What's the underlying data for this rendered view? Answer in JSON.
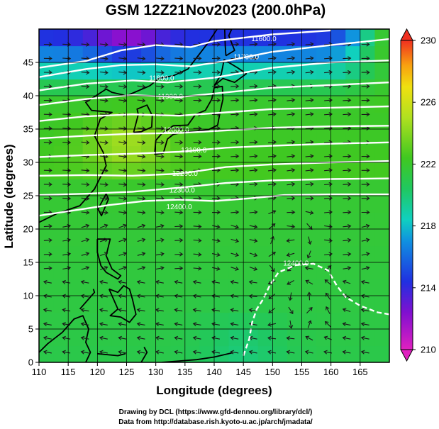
{
  "chart_data": {
    "type": "heatmap",
    "title": "GSM 12Z21Nov2023 (200.0hPa)",
    "xlabel": "Longitude (degrees)",
    "ylabel": "Latitude  (degrees)",
    "xlim": [
      110,
      170
    ],
    "ylim": [
      0,
      50
    ],
    "x_ticks": [
      110,
      115,
      120,
      125,
      130,
      135,
      140,
      145,
      150,
      155,
      160,
      165
    ],
    "y_ticks": [
      0,
      5,
      10,
      15,
      20,
      25,
      30,
      35,
      40,
      45
    ],
    "grid": true,
    "colorbar": {
      "min": 210,
      "max": 230,
      "ticks": [
        210,
        214,
        218,
        222,
        226,
        230
      ],
      "colors": [
        "#e020c0",
        "#6a10d0",
        "#2040e0",
        "#10b0e0",
        "#10e0a0",
        "#30c820",
        "#a8e020",
        "#f0e010",
        "#f8a010",
        "#f03020"
      ]
    },
    "contours": [
      {
        "label": "11600.0",
        "lon": 148.5,
        "lat": 48.2
      },
      {
        "label": "11700.0",
        "lon": 145.5,
        "lat": 45.5
      },
      {
        "label": "11800.0",
        "lon": 131.0,
        "lat": 42.3
      },
      {
        "label": "11900.0",
        "lon": 132.5,
        "lat": 39.5
      },
      {
        "label": "12000.0",
        "lon": 133.5,
        "lat": 34.5
      },
      {
        "label": "12100.0",
        "lon": 136.5,
        "lat": 31.5
      },
      {
        "label": "12200.0",
        "lon": 135.0,
        "lat": 28.0
      },
      {
        "label": "12300.0",
        "lon": 134.5,
        "lat": 25.5
      },
      {
        "label": "12400.0",
        "lon": 134.0,
        "lat": 23.0
      },
      {
        "label": "12400.0",
        "lon": 154.0,
        "lat": 14.5
      }
    ]
  },
  "footer": {
    "line1": "Drawing by DCL (https://www.gfd-dennou.org/library/dcl/)",
    "line2": "Data from http://database.rish.kyoto-u.ac.jp/arch/jmadata/"
  }
}
